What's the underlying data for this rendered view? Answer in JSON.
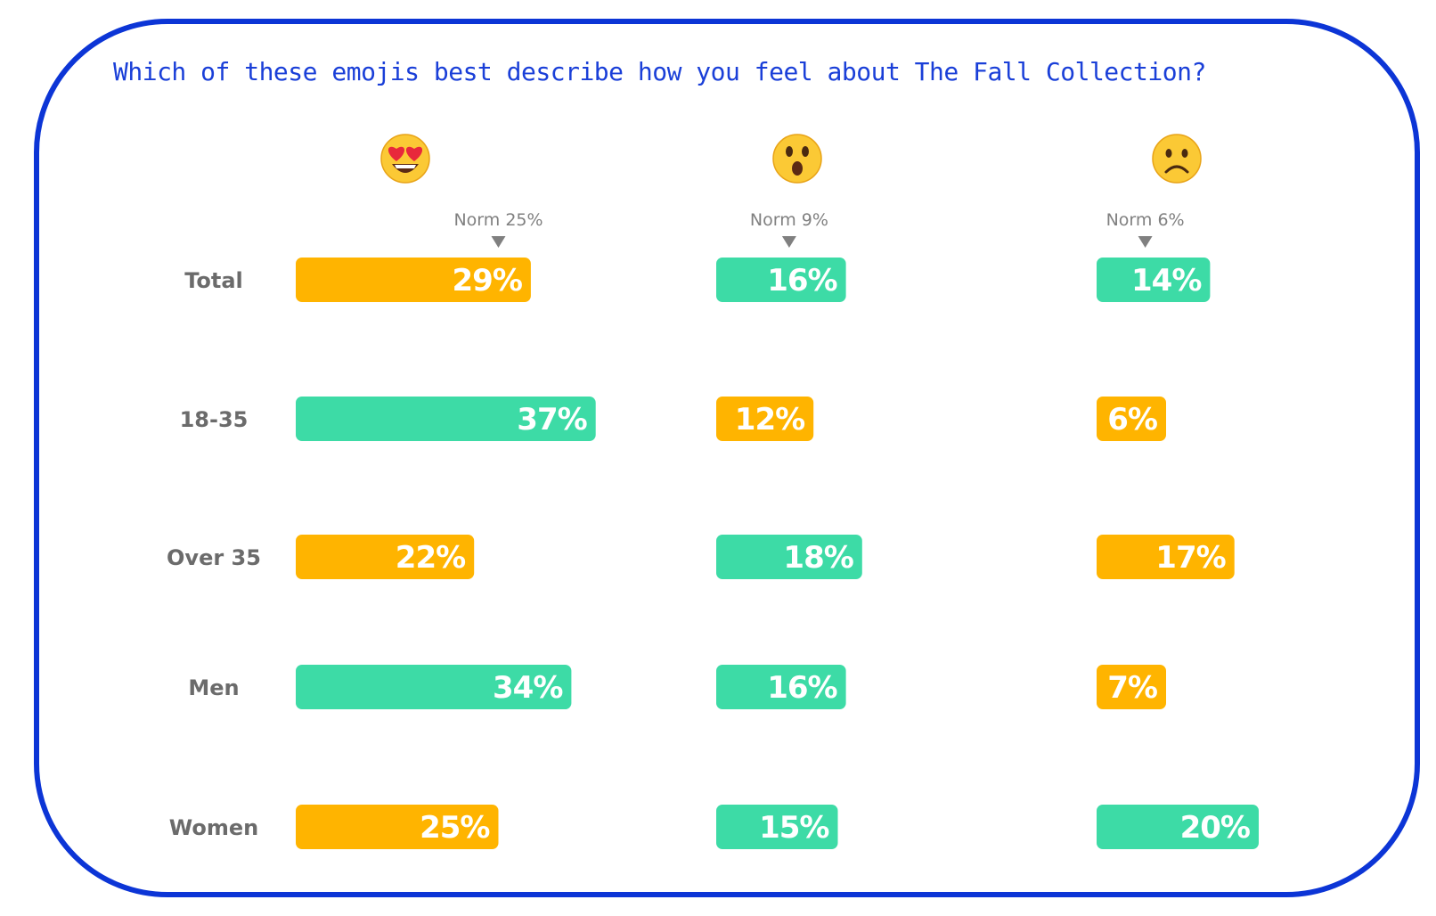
{
  "question": "Which of these emojis best describe how you feel about The Fall Collection?",
  "colors": {
    "border": "#0c35d6",
    "title": "#1a3fd8",
    "orange": "#ffb400",
    "teal": "#3ddba6",
    "label": "#6b6b6b",
    "norm": "#808080"
  },
  "chart_data": {
    "type": "bar",
    "orientation": "horizontal",
    "categories": [
      "Total",
      "18-35",
      "Over 35",
      "Men",
      "Women"
    ],
    "columns": [
      {
        "emoji": "heart-eyes-emoji",
        "norm_label": "Norm 25%",
        "norm": 25,
        "values": [
          29,
          37,
          22,
          34,
          25
        ],
        "labels": [
          "29%",
          "37%",
          "22%",
          "34%",
          "25%"
        ],
        "colors": [
          "orange",
          "teal",
          "orange",
          "teal",
          "orange"
        ]
      },
      {
        "emoji": "astonished-emoji",
        "norm_label": "Norm 9%",
        "norm": 9,
        "values": [
          16,
          12,
          18,
          16,
          15
        ],
        "labels": [
          "16%",
          "12%",
          "18%",
          "16%",
          "15%"
        ],
        "colors": [
          "teal",
          "orange",
          "teal",
          "teal",
          "teal"
        ]
      },
      {
        "emoji": "frowning-emoji",
        "norm_label": "Norm 6%",
        "norm": 6,
        "values": [
          14,
          6,
          17,
          7,
          20
        ],
        "labels": [
          "14%",
          "6%",
          "17%",
          "7%",
          "20%"
        ],
        "colors": [
          "teal",
          "orange",
          "orange",
          "orange",
          "teal"
        ]
      }
    ]
  }
}
